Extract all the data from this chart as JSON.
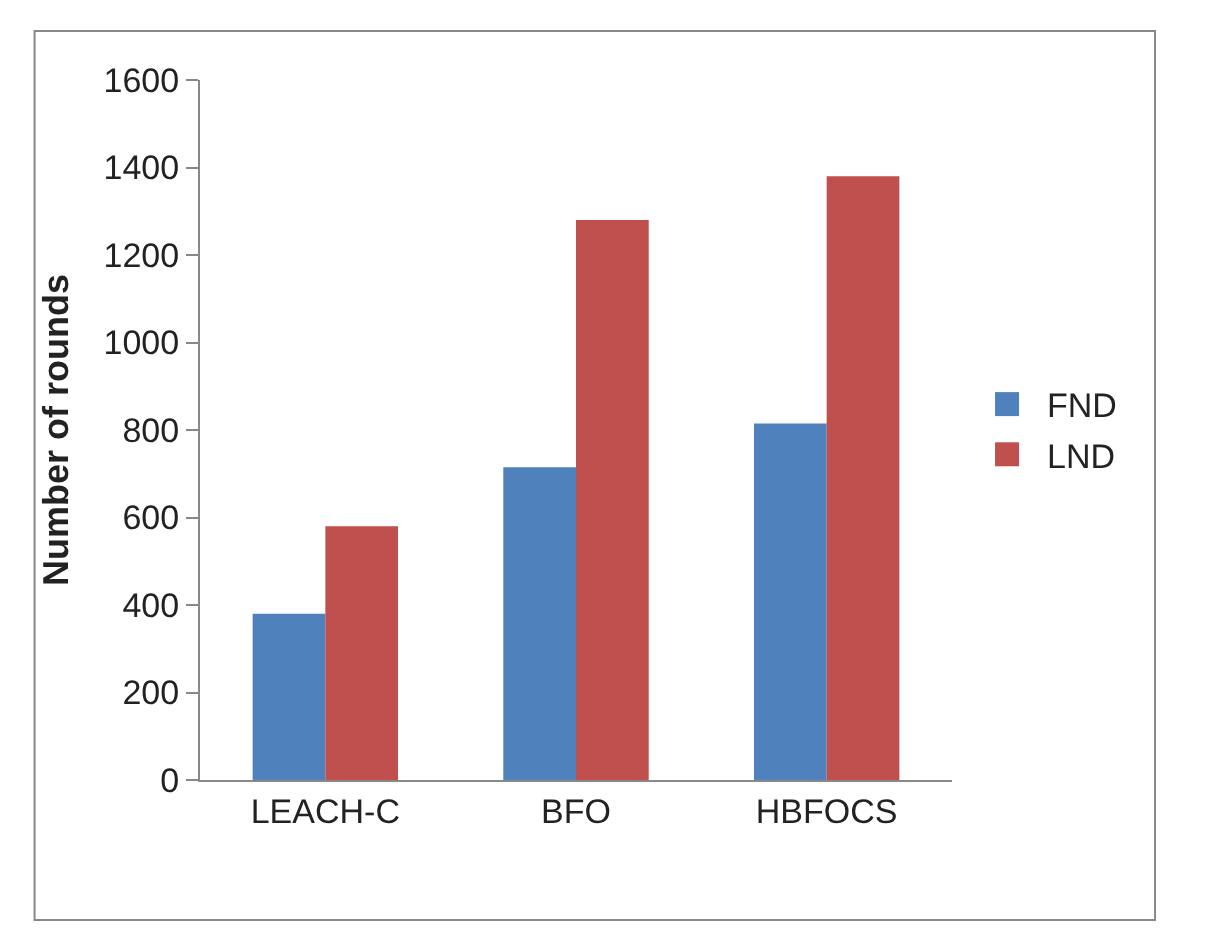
{
  "chart_data": {
    "type": "bar",
    "ylabel": "Number of rounds",
    "categories": [
      "LEACH-C",
      "BFO",
      "HBFOCS"
    ],
    "series": [
      {
        "name": "FND",
        "color": "#4f81bd",
        "values": [
          380,
          715,
          815
        ]
      },
      {
        "name": "LND",
        "color": "#c0504d",
        "values": [
          580,
          1280,
          1380
        ]
      }
    ],
    "ylim": [
      0,
      1600
    ],
    "yticks": [
      0,
      200,
      400,
      600,
      800,
      1000,
      1200,
      1400,
      1600
    ],
    "legend": "right"
  }
}
